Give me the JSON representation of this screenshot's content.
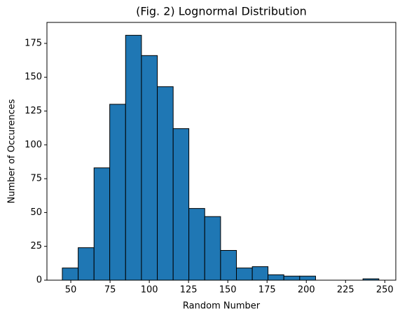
{
  "chart_data": {
    "type": "histogram",
    "title": "(Fig. 2) Lognormal Distribution",
    "x_label": "Random Number",
    "y_label": "Number of Occurences",
    "bins": [
      44.6,
      54.7,
      64.8,
      74.8,
      84.9,
      95.0,
      105.1,
      115.2,
      125.2,
      135.3,
      145.4,
      155.5,
      165.6,
      175.6,
      185.7,
      195.8,
      205.9,
      216.0,
      226.0,
      236.1,
      246.2
    ],
    "values": [
      9,
      24,
      83,
      130,
      181,
      166,
      143,
      112,
      53,
      47,
      22,
      9,
      10,
      4,
      3,
      3,
      0,
      0,
      0,
      1
    ],
    "color": "#1f77b4",
    "xlim": [
      34.8,
      257
    ],
    "xticks": [
      50,
      75,
      100,
      125,
      150,
      175,
      200,
      225,
      250
    ],
    "ylim": [
      0,
      190.5
    ],
    "yticks": [
      0,
      25,
      50,
      75,
      100,
      125,
      150,
      175
    ]
  }
}
